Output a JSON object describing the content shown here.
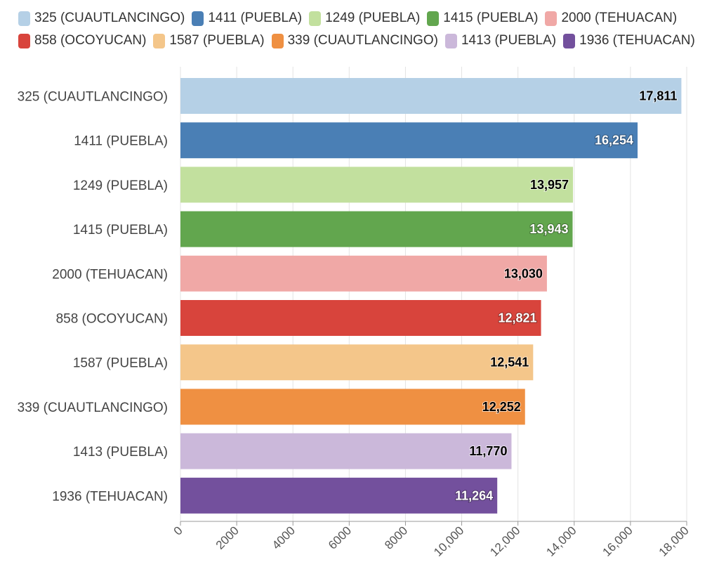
{
  "chart_data": {
    "type": "bar",
    "orientation": "horizontal",
    "categories": [
      "325 (CUAUTLANCINGO)",
      "1411 (PUEBLA)",
      "1249 (PUEBLA)",
      "1415 (PUEBLA)",
      "2000 (TEHUACAN)",
      "858 (OCOYUCAN)",
      "1587 (PUEBLA)",
      "339 (CUAUTLANCINGO)",
      "1413 (PUEBLA)",
      "1936 (TEHUACAN)"
    ],
    "values": [
      17811,
      16254,
      13957,
      13943,
      13030,
      12821,
      12541,
      12252,
      11770,
      11264
    ],
    "value_labels": [
      "17,811",
      "16,254",
      "13,957",
      "13,943",
      "13,030",
      "12,821",
      "12,541",
      "12,252",
      "11,770",
      "11,264"
    ],
    "colors": [
      "#b5d0e6",
      "#4a7fb5",
      "#c2e09e",
      "#62a64e",
      "#f0a8a6",
      "#d8443c",
      "#f4c68a",
      "#ef9042",
      "#cbb8da",
      "#73509d"
    ],
    "label_colors": [
      "#000000",
      "#ffffff",
      "#000000",
      "#ffffff",
      "#000000",
      "#ffffff",
      "#000000",
      "#000000",
      "#000000",
      "#ffffff"
    ],
    "xlim": [
      0,
      18000
    ],
    "xticks": [
      0,
      2000,
      4000,
      6000,
      8000,
      10000,
      12000,
      14000,
      16000,
      18000
    ],
    "xtick_labels": [
      "0",
      "2000",
      "4000",
      "6000",
      "8000",
      "10,000",
      "12,000",
      "14,000",
      "16,000",
      "18,000"
    ],
    "grid": true,
    "legend": "top",
    "title": "",
    "xlabel": "",
    "ylabel": ""
  }
}
